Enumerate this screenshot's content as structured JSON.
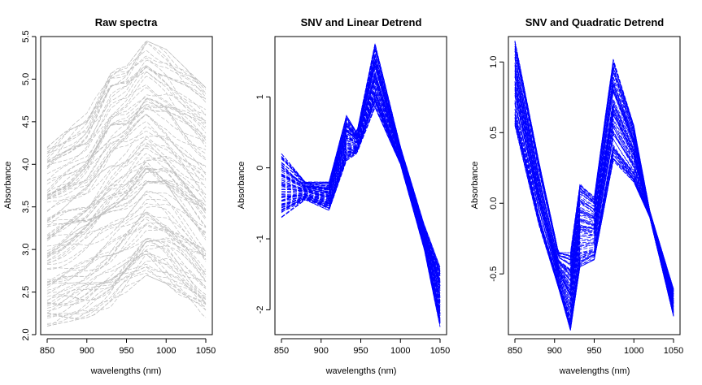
{
  "chart_data": [
    {
      "type": "line",
      "title": "Raw spectra",
      "xlabel": "wavelengths (nm)",
      "ylabel": "Absorbance",
      "x_ticks": [
        850,
        900,
        950,
        1000,
        1050
      ],
      "x_tick_labels": [
        "850",
        "900",
        "950",
        "1000",
        "1050"
      ],
      "y_ticks": [
        2.0,
        2.5,
        3.0,
        3.5,
        4.0,
        4.5,
        5.0,
        5.5
      ],
      "y_tick_labels": [
        "2.0",
        "2.5",
        "3.0",
        "3.5",
        "4.0",
        "4.5",
        "5.0",
        "5.5"
      ],
      "xlim": [
        850,
        1050
      ],
      "ylim": [
        2.0,
        5.5
      ],
      "line_color": "#bebebe",
      "line_style": "dashed",
      "grid": false,
      "legend": "none",
      "approx_series_count": 100,
      "series_envelope": {
        "x": [
          850,
          900,
          930,
          950,
          975,
          1000,
          1050
        ],
        "lower": [
          2.1,
          2.2,
          2.3,
          2.5,
          2.7,
          2.6,
          2.2
        ],
        "upper": [
          4.2,
          4.6,
          5.1,
          5.15,
          5.45,
          5.35,
          4.9
        ]
      }
    },
    {
      "type": "line",
      "title": "SNV and Linear Detrend",
      "xlabel": "wavelengths (nm)",
      "ylabel": "Absorbance",
      "x_ticks": [
        850,
        900,
        950,
        1000,
        1050
      ],
      "x_tick_labels": [
        "850",
        "900",
        "950",
        "1000",
        "1050"
      ],
      "y_ticks": [
        -2,
        -1,
        0,
        1
      ],
      "y_tick_labels": [
        "-2",
        "-1",
        "0",
        "1"
      ],
      "xlim": [
        850,
        1050
      ],
      "ylim": [
        -2.35,
        1.85
      ],
      "line_color": "#0000ff",
      "line_style": "dashed",
      "grid": false,
      "legend": "none",
      "approx_series_count": 100,
      "series_envelope": {
        "x": [
          850,
          880,
          910,
          932,
          945,
          968,
          1000,
          1030,
          1050
        ],
        "lower": [
          -0.7,
          -0.45,
          -0.6,
          0.1,
          0.2,
          0.85,
          0.05,
          -1.15,
          -2.25
        ],
        "upper": [
          0.2,
          -0.2,
          -0.2,
          0.75,
          0.5,
          1.75,
          0.3,
          -0.8,
          -1.4
        ]
      }
    },
    {
      "type": "line",
      "title": "SNV and Quadratic Detrend",
      "xlabel": "wavelengths (nm)",
      "ylabel": "Absorbance",
      "x_ticks": [
        850,
        900,
        950,
        1000,
        1050
      ],
      "x_tick_labels": [
        "850",
        "900",
        "950",
        "1000",
        "1050"
      ],
      "y_ticks": [
        -0.5,
        0.0,
        0.5,
        1.0
      ],
      "y_tick_labels": [
        "-0.5",
        "0.0",
        "0.5",
        "1.0"
      ],
      "xlim": [
        850,
        1050
      ],
      "ylim": [
        -0.93,
        1.18
      ],
      "line_color": "#0000ff",
      "line_style": "dashed",
      "grid": false,
      "legend": "none",
      "approx_series_count": 100,
      "series_envelope": {
        "x": [
          850,
          880,
          905,
          920,
          932,
          950,
          974,
          1000,
          1020,
          1050
        ],
        "lower": [
          0.55,
          -0.15,
          -0.6,
          -0.9,
          -0.45,
          -0.4,
          0.3,
          0.15,
          -0.1,
          -0.8
        ],
        "upper": [
          1.15,
          0.3,
          -0.35,
          -0.35,
          0.15,
          0.05,
          1.02,
          0.55,
          -0.05,
          -0.6
        ]
      }
    }
  ]
}
